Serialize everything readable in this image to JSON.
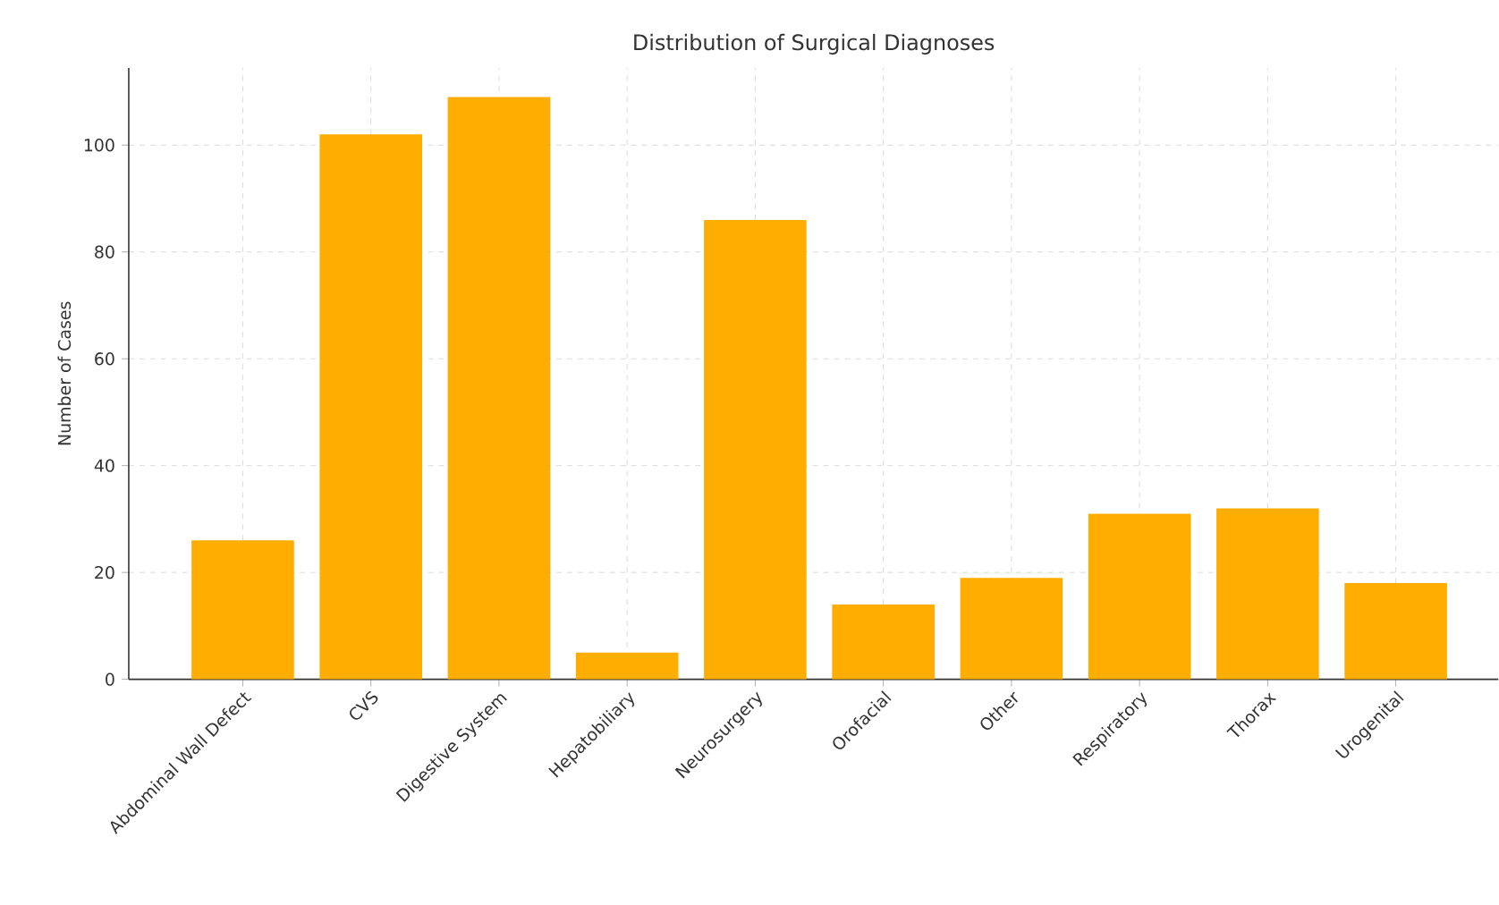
{
  "chart_data": {
    "type": "bar",
    "title": "Distribution of Surgical Diagnoses",
    "ylabel": "Number of Cases",
    "categories": [
      "Abdominal Wall Defect",
      "CVS",
      "Digestive System",
      "Hepatobiliary",
      "Neurosurgery",
      "Orofacial",
      "Other",
      "Respiratory",
      "Thorax",
      "Urogenital"
    ],
    "values": [
      26,
      102,
      109,
      5,
      86,
      14,
      19,
      31,
      32,
      18
    ],
    "color": "#ffad00",
    "ylim": [
      0,
      114.45
    ],
    "yticks": [
      0,
      20,
      40,
      60,
      80,
      100
    ],
    "grid": true
  }
}
